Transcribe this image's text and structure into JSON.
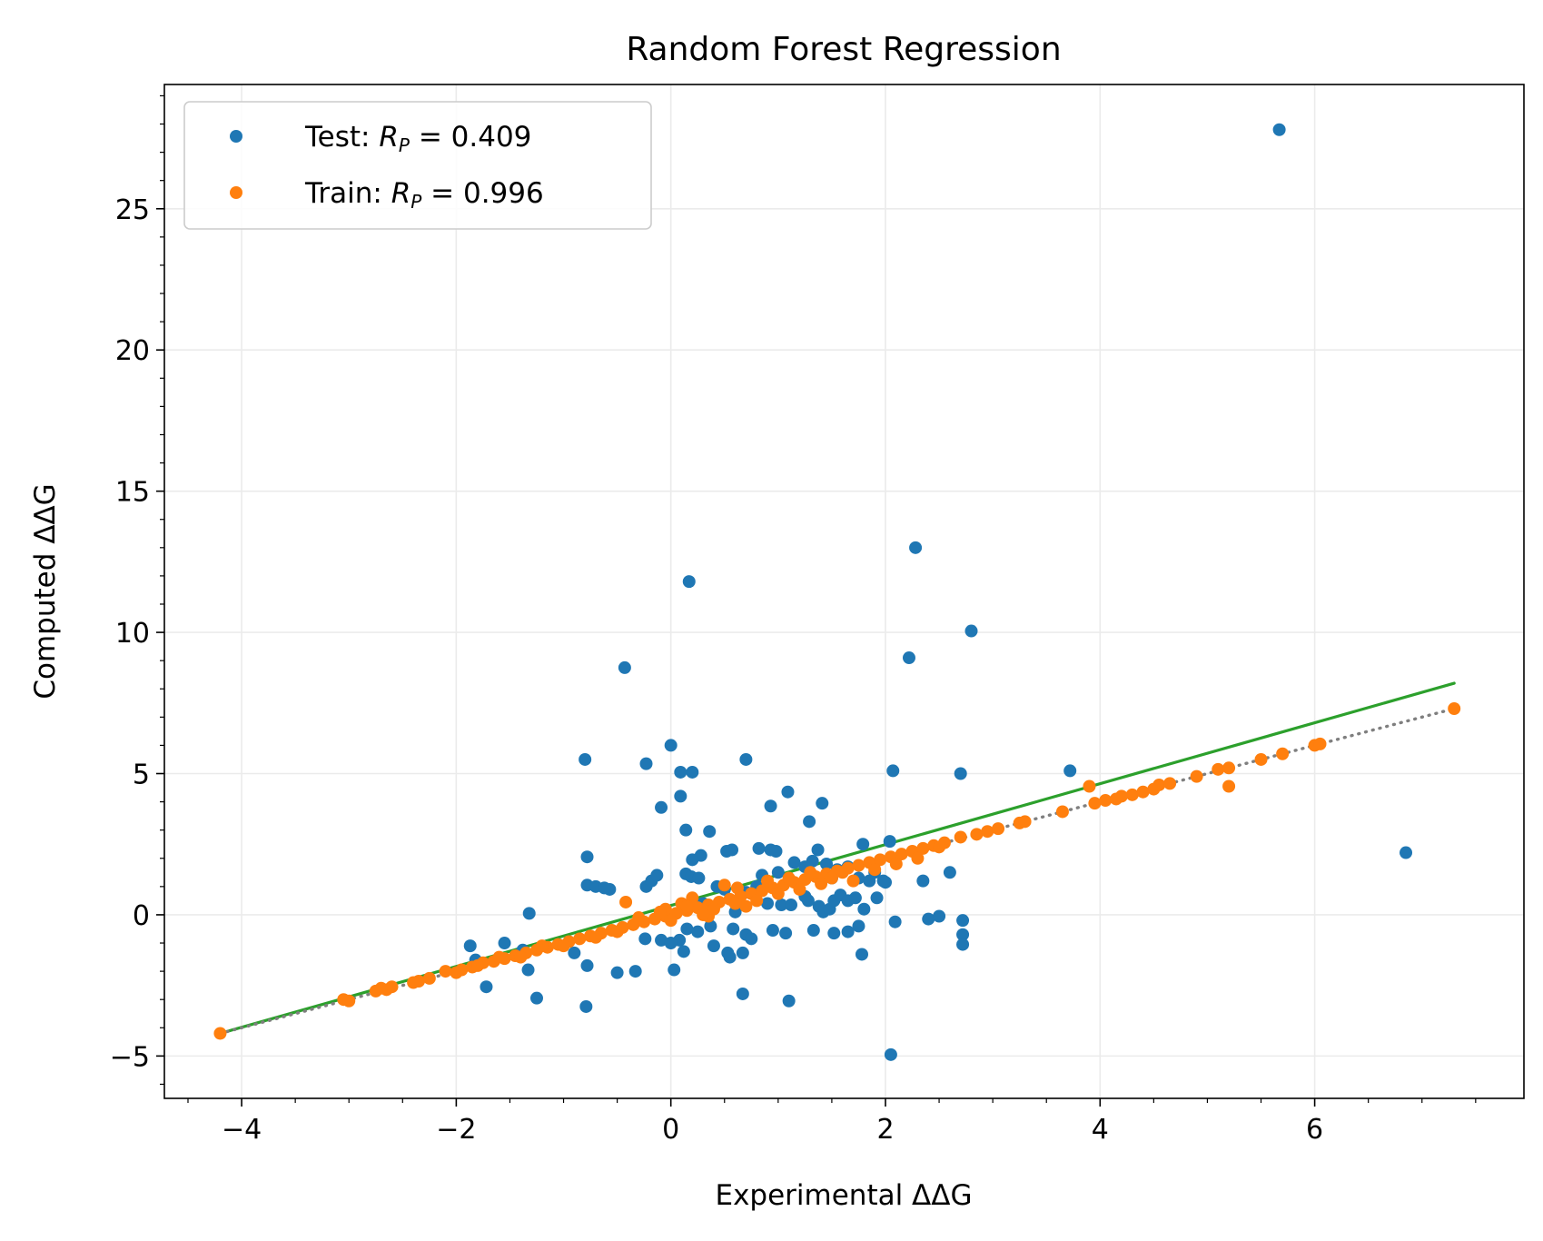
{
  "chart_data": {
    "type": "scatter",
    "title": "Random Forest Regression",
    "xlabel": "Experimental ΔΔG",
    "ylabel": "Computed ΔΔG",
    "xlim": [
      -4.72,
      7.95
    ],
    "ylim": [
      -6.5,
      29.4
    ],
    "x_ticks": [
      -4,
      -2,
      0,
      2,
      4,
      6
    ],
    "x_tick_labels": [
      "−4",
      "−2",
      "0",
      "2",
      "4",
      "6"
    ],
    "y_ticks": [
      -5,
      0,
      5,
      10,
      15,
      20,
      25
    ],
    "y_tick_labels": [
      "−5",
      "0",
      "5",
      "10",
      "15",
      "20",
      "25"
    ],
    "x_minor_step": 0.5,
    "y_minor_step": 1,
    "grid": true,
    "legend_position": "top-left",
    "series": [
      {
        "name": "Test: R_P = 0.409",
        "legend_prefix": "Test: ",
        "legend_sub": "P",
        "legend_suffix": " = 0.409",
        "color": "#1f77b4",
        "points": [
          [
            5.67,
            27.8
          ],
          [
            2.28,
            13.0
          ],
          [
            0.17,
            11.8
          ],
          [
            2.8,
            10.05
          ],
          [
            2.22,
            9.1
          ],
          [
            -0.43,
            8.75
          ],
          [
            -0.8,
            5.5
          ],
          [
            0.0,
            6.0
          ],
          [
            -0.23,
            5.35
          ],
          [
            0.7,
            5.5
          ],
          [
            0.09,
            5.05
          ],
          [
            0.2,
            5.05
          ],
          [
            2.07,
            5.1
          ],
          [
            2.7,
            5.0
          ],
          [
            3.72,
            5.1
          ],
          [
            0.09,
            4.2
          ],
          [
            1.09,
            4.35
          ],
          [
            1.41,
            3.95
          ],
          [
            -0.09,
            3.8
          ],
          [
            0.93,
            3.85
          ],
          [
            1.29,
            3.3
          ],
          [
            0.14,
            3.0
          ],
          [
            0.36,
            2.95
          ],
          [
            0.28,
            2.1
          ],
          [
            0.2,
            1.95
          ],
          [
            0.57,
            2.3
          ],
          [
            0.52,
            2.25
          ],
          [
            0.82,
            2.35
          ],
          [
            0.93,
            2.3
          ],
          [
            0.98,
            2.25
          ],
          [
            1.37,
            2.3
          ],
          [
            1.79,
            2.5
          ],
          [
            2.04,
            2.6
          ],
          [
            -0.78,
            2.05
          ],
          [
            -0.78,
            1.05
          ],
          [
            -0.7,
            1.0
          ],
          [
            -0.57,
            0.9
          ],
          [
            -0.62,
            0.95
          ],
          [
            -0.23,
            1.0
          ],
          [
            -0.18,
            1.2
          ],
          [
            -0.13,
            1.4
          ],
          [
            0.14,
            1.45
          ],
          [
            0.19,
            1.35
          ],
          [
            0.26,
            1.3
          ],
          [
            0.43,
            1.0
          ],
          [
            0.5,
            0.9
          ],
          [
            0.7,
            0.8
          ],
          [
            0.8,
            1.0
          ],
          [
            0.9,
            0.4
          ],
          [
            1.0,
            1.5
          ],
          [
            1.15,
            1.85
          ],
          [
            1.25,
            1.7
          ],
          [
            1.32,
            1.9
          ],
          [
            1.45,
            1.8
          ],
          [
            1.55,
            1.6
          ],
          [
            1.65,
            1.7
          ],
          [
            1.75,
            1.3
          ],
          [
            1.85,
            1.2
          ],
          [
            1.9,
            1.5
          ],
          [
            2.0,
            1.15
          ],
          [
            2.35,
            1.2
          ],
          [
            1.98,
            1.2
          ],
          [
            1.03,
            0.35
          ],
          [
            1.12,
            0.35
          ],
          [
            1.28,
            0.5
          ],
          [
            1.38,
            0.3
          ],
          [
            1.42,
            0.1
          ],
          [
            1.48,
            0.2
          ],
          [
            1.52,
            0.5
          ],
          [
            1.58,
            0.7
          ],
          [
            1.65,
            0.5
          ],
          [
            1.72,
            0.6
          ],
          [
            1.8,
            0.2
          ],
          [
            -1.32,
            0.05
          ],
          [
            2.4,
            -0.15
          ],
          [
            2.5,
            -0.05
          ],
          [
            2.09,
            -0.25
          ],
          [
            2.72,
            -0.2
          ],
          [
            2.72,
            -0.7
          ],
          [
            2.72,
            -1.05
          ],
          [
            0.15,
            -0.5
          ],
          [
            0.25,
            -0.6
          ],
          [
            0.37,
            -0.4
          ],
          [
            0.58,
            -0.5
          ],
          [
            0.7,
            -0.7
          ],
          [
            0.75,
            -0.85
          ],
          [
            0.95,
            -0.55
          ],
          [
            1.07,
            -0.65
          ],
          [
            1.33,
            -0.55
          ],
          [
            1.52,
            -0.65
          ],
          [
            1.65,
            -0.6
          ],
          [
            1.75,
            -0.4
          ],
          [
            -0.09,
            -0.9
          ],
          [
            -0.24,
            -0.85
          ],
          [
            0.08,
            -0.9
          ],
          [
            0.0,
            -1.0
          ],
          [
            0.12,
            -1.3
          ],
          [
            0.4,
            -1.1
          ],
          [
            0.53,
            -1.35
          ],
          [
            0.55,
            -1.5
          ],
          [
            0.67,
            -1.35
          ],
          [
            1.78,
            -1.4
          ],
          [
            -1.87,
            -1.1
          ],
          [
            -1.55,
            -1.0
          ],
          [
            -1.38,
            -1.25
          ],
          [
            -1.82,
            -1.6
          ],
          [
            -0.9,
            -1.35
          ],
          [
            -0.78,
            -1.8
          ],
          [
            -0.5,
            -2.05
          ],
          [
            -0.33,
            -2.0
          ],
          [
            0.03,
            -1.95
          ],
          [
            -1.33,
            -1.95
          ],
          [
            -1.72,
            -2.55
          ],
          [
            -1.25,
            -2.95
          ],
          [
            -0.79,
            -3.25
          ],
          [
            0.67,
            -2.8
          ],
          [
            1.1,
            -3.05
          ],
          [
            2.05,
            -4.95
          ],
          [
            6.85,
            2.2
          ],
          [
            1.25,
            0.65
          ],
          [
            1.5,
            1.3
          ],
          [
            0.85,
            1.4
          ],
          [
            1.92,
            0.6
          ],
          [
            2.6,
            1.5
          ],
          [
            0.3,
            0.4
          ],
          [
            0.6,
            0.1
          ]
        ]
      },
      {
        "name": "Train: R_P = 0.996",
        "legend_prefix": "Train: ",
        "legend_sub": "P",
        "legend_suffix": " = 0.996",
        "color": "#ff7f0e",
        "points": [
          [
            -4.2,
            -4.2
          ],
          [
            -3.05,
            -3.0
          ],
          [
            -2.75,
            -2.7
          ],
          [
            -2.65,
            -2.65
          ],
          [
            -2.6,
            -2.55
          ],
          [
            -2.35,
            -2.35
          ],
          [
            -2.25,
            -2.25
          ],
          [
            -2.0,
            -2.05
          ],
          [
            -1.95,
            -1.95
          ],
          [
            -1.85,
            -1.85
          ],
          [
            -1.75,
            -1.7
          ],
          [
            -1.65,
            -1.65
          ],
          [
            -1.55,
            -1.55
          ],
          [
            -1.45,
            -1.45
          ],
          [
            -1.35,
            -1.35
          ],
          [
            -1.25,
            -1.25
          ],
          [
            -1.15,
            -1.15
          ],
          [
            -1.05,
            -1.05
          ],
          [
            -0.95,
            -0.95
          ],
          [
            -0.85,
            -0.85
          ],
          [
            -0.75,
            -0.75
          ],
          [
            -0.65,
            -0.65
          ],
          [
            -0.55,
            -0.55
          ],
          [
            -0.45,
            -0.45
          ],
          [
            -0.35,
            -0.35
          ],
          [
            -0.25,
            -0.25
          ],
          [
            -0.15,
            -0.15
          ],
          [
            -0.05,
            -0.05
          ],
          [
            0.05,
            0.05
          ],
          [
            0.15,
            0.15
          ],
          [
            0.25,
            0.25
          ],
          [
            0.35,
            0.35
          ],
          [
            0.45,
            0.45
          ],
          [
            0.55,
            0.55
          ],
          [
            0.65,
            0.65
          ],
          [
            0.75,
            0.75
          ],
          [
            0.85,
            0.85
          ],
          [
            0.95,
            0.95
          ],
          [
            1.05,
            1.05
          ],
          [
            1.15,
            1.15
          ],
          [
            1.25,
            1.25
          ],
          [
            1.35,
            1.35
          ],
          [
            1.45,
            1.45
          ],
          [
            1.55,
            1.55
          ],
          [
            1.65,
            1.65
          ],
          [
            1.75,
            1.75
          ],
          [
            1.85,
            1.85
          ],
          [
            1.95,
            1.95
          ],
          [
            2.05,
            2.05
          ],
          [
            2.15,
            2.15
          ],
          [
            2.25,
            2.25
          ],
          [
            2.35,
            2.35
          ],
          [
            2.45,
            2.45
          ],
          [
            2.55,
            2.55
          ],
          [
            2.7,
            2.75
          ],
          [
            2.85,
            2.85
          ],
          [
            2.95,
            2.95
          ],
          [
            3.05,
            3.05
          ],
          [
            3.25,
            3.25
          ],
          [
            3.3,
            3.3
          ],
          [
            3.65,
            3.65
          ],
          [
            3.9,
            4.55
          ],
          [
            3.95,
            3.95
          ],
          [
            4.05,
            4.05
          ],
          [
            4.15,
            4.1
          ],
          [
            4.2,
            4.2
          ],
          [
            4.3,
            4.25
          ],
          [
            4.4,
            4.35
          ],
          [
            4.5,
            4.45
          ],
          [
            4.55,
            4.6
          ],
          [
            4.65,
            4.65
          ],
          [
            4.9,
            4.9
          ],
          [
            5.1,
            5.15
          ],
          [
            5.2,
            5.2
          ],
          [
            5.2,
            4.55
          ],
          [
            5.5,
            5.5
          ],
          [
            5.7,
            5.7
          ],
          [
            6.0,
            6.0
          ],
          [
            6.05,
            6.05
          ],
          [
            7.3,
            7.3
          ],
          [
            -0.42,
            0.45
          ],
          [
            0.5,
            1.05
          ],
          [
            0.62,
            0.95
          ],
          [
            0.2,
            0.6
          ],
          [
            0.1,
            0.4
          ],
          [
            -0.05,
            0.2
          ],
          [
            0.0,
            -0.2
          ],
          [
            0.35,
            -0.05
          ],
          [
            0.7,
            0.3
          ],
          [
            1.0,
            0.75
          ],
          [
            1.2,
            0.9
          ],
          [
            1.4,
            1.1
          ],
          [
            1.6,
            1.5
          ],
          [
            1.7,
            1.2
          ],
          [
            1.9,
            1.6
          ],
          [
            2.1,
            1.8
          ],
          [
            2.3,
            2.0
          ],
          [
            2.5,
            2.4
          ],
          [
            0.8,
            0.5
          ],
          [
            0.9,
            1.2
          ],
          [
            1.1,
            1.3
          ],
          [
            1.3,
            1.5
          ],
          [
            1.5,
            1.3
          ],
          [
            -0.1,
            0.1
          ],
          [
            -0.3,
            -0.1
          ],
          [
            -0.5,
            -0.6
          ],
          [
            -0.7,
            -0.8
          ],
          [
            -1.0,
            -1.1
          ],
          [
            -1.2,
            -1.1
          ],
          [
            -1.4,
            -1.5
          ],
          [
            -1.6,
            -1.5
          ],
          [
            -1.8,
            -1.8
          ],
          [
            -2.1,
            -2.0
          ],
          [
            -2.4,
            -2.4
          ],
          [
            -2.7,
            -2.6
          ],
          [
            -3.0,
            -3.05
          ],
          [
            0.4,
            0.2
          ],
          [
            0.6,
            0.4
          ],
          [
            0.3,
            0.0
          ],
          [
            0.15,
            0.3
          ]
        ]
      }
    ],
    "lines": [
      {
        "name": "fit",
        "color": "#2ca02c",
        "style": "solid",
        "points": [
          [
            -4.2,
            -4.2
          ],
          [
            7.3,
            8.2
          ]
        ]
      },
      {
        "name": "identity",
        "color": "#7f7f7f",
        "style": "dotted",
        "points": [
          [
            -4.2,
            -4.2
          ],
          [
            7.3,
            7.3
          ]
        ]
      }
    ]
  }
}
